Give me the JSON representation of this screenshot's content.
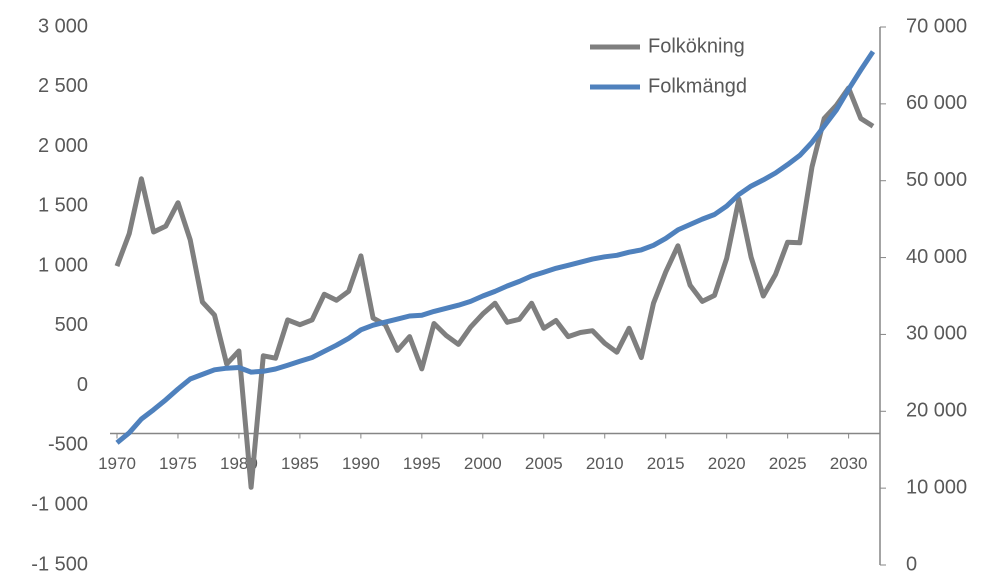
{
  "chart_data": {
    "type": "line",
    "x": [
      1970,
      1971,
      1972,
      1973,
      1974,
      1975,
      1976,
      1977,
      1978,
      1979,
      1980,
      1981,
      1982,
      1983,
      1984,
      1985,
      1986,
      1987,
      1988,
      1989,
      1990,
      1991,
      1992,
      1993,
      1994,
      1995,
      1996,
      1997,
      1998,
      1999,
      2000,
      2001,
      2002,
      2003,
      2004,
      2005,
      2006,
      2007,
      2008,
      2009,
      2010,
      2011,
      2012,
      2013,
      2014,
      2015,
      2016,
      2017,
      2018,
      2019,
      2020,
      2021,
      2022,
      2023,
      2024,
      2025,
      2026,
      2027,
      2028,
      2029,
      2030,
      2031,
      2032
    ],
    "series": [
      {
        "name": "Folkökning",
        "color": "#7f7f7f",
        "values": [
          1000,
          1270,
          1730,
          1285,
          1335,
          1530,
          1220,
          700,
          590,
          180,
          290,
          -850,
          250,
          230,
          550,
          510,
          550,
          765,
          715,
          790,
          1085,
          565,
          510,
          295,
          410,
          140,
          520,
          420,
          345,
          490,
          600,
          690,
          530,
          555,
          690,
          480,
          545,
          410,
          445,
          460,
          355,
          280,
          480,
          235,
          690,
          950,
          1170,
          840,
          705,
          755,
          1065,
          1560,
          1075,
          750,
          930,
          1200,
          1195,
          1830,
          2235,
          2345,
          2490,
          2235,
          2170
        ]
      },
      {
        "name": "Folkmängd",
        "color": "#4f81bd",
        "axis": "y2",
        "values": [
          15900,
          17200,
          19000,
          20200,
          21500,
          22900,
          24200,
          24800,
          25400,
          25600,
          25700,
          25100,
          25200,
          25500,
          26000,
          26500,
          27000,
          27800,
          28600,
          29500,
          30600,
          31200,
          31600,
          32000,
          32400,
          32500,
          33000,
          33400,
          33800,
          34300,
          35000,
          35600,
          36300,
          36900,
          37600,
          38100,
          38600,
          39000,
          39400,
          39800,
          40100,
          40300,
          40700,
          41000,
          41600,
          42500,
          43600,
          44300,
          45000,
          45600,
          46700,
          48200,
          49300,
          50100,
          51000,
          52100,
          53300,
          55000,
          57100,
          59200,
          61900,
          64400,
          66800
        ]
      }
    ],
    "xlim": [
      1970,
      2032
    ],
    "xticks": [
      1970,
      1975,
      1980,
      1985,
      1990,
      1995,
      2000,
      2005,
      2010,
      2015,
      2020,
      2025,
      2030
    ],
    "ylim": [
      -1500,
      3000
    ],
    "yticks": [
      {
        "value": -1500,
        "label": "-1 500"
      },
      {
        "value": -1000,
        "label": "-1 000"
      },
      -500,
      0,
      500,
      {
        "value": 1000,
        "label": "1 000"
      },
      {
        "value": 1500,
        "label": "1 500"
      },
      {
        "value": 2000,
        "label": "2 000"
      },
      {
        "value": 2500,
        "label": "2 500"
      },
      {
        "value": 3000,
        "label": "3 000"
      }
    ],
    "y2lim": [
      0,
      70000
    ],
    "y2ticks": [
      0,
      {
        "value": 10000,
        "label": "10 000"
      },
      {
        "value": 20000,
        "label": "20 000"
      },
      {
        "value": 30000,
        "label": "30 000"
      },
      {
        "value": 40000,
        "label": "40 000"
      },
      {
        "value": 50000,
        "label": "50 000"
      },
      {
        "value": 60000,
        "label": "60 000"
      },
      {
        "value": 70000,
        "label": "70 000"
      }
    ],
    "x_axis_crossing": -400,
    "legend": "top-right"
  }
}
